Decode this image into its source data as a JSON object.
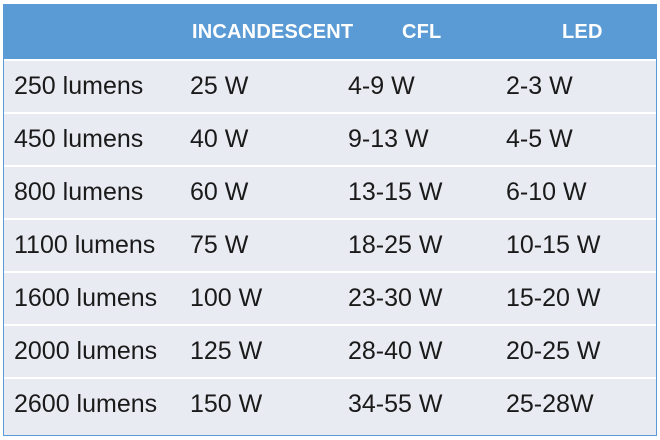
{
  "table": {
    "headers": [
      "",
      "INCANDESCENT",
      "CFL",
      "LED"
    ],
    "rows": [
      [
        "250 lumens",
        "25 W",
        "4-9 W",
        "2-3 W"
      ],
      [
        "450 lumens",
        "40 W",
        "9-13 W",
        "4-5 W"
      ],
      [
        "800 lumens",
        "60 W",
        "13-15 W",
        "6-10 W"
      ],
      [
        "1100 lumens",
        "75 W",
        "18-25 W",
        "10-15 W"
      ],
      [
        "1600 lumens",
        "100 W",
        "23-30 W",
        "15-20 W"
      ],
      [
        "2000 lumens",
        "125 W",
        "28-40 W",
        "20-25 W"
      ],
      [
        "2600 lumens",
        "150 W",
        "34-55 W",
        "25-28W"
      ]
    ]
  },
  "colors": {
    "header_background": "#5b9bd5",
    "header_text": "#ffffff",
    "row_background": "#e9ebf2",
    "row_divider": "#ffffff",
    "cell_text": "#1a1a1a"
  }
}
